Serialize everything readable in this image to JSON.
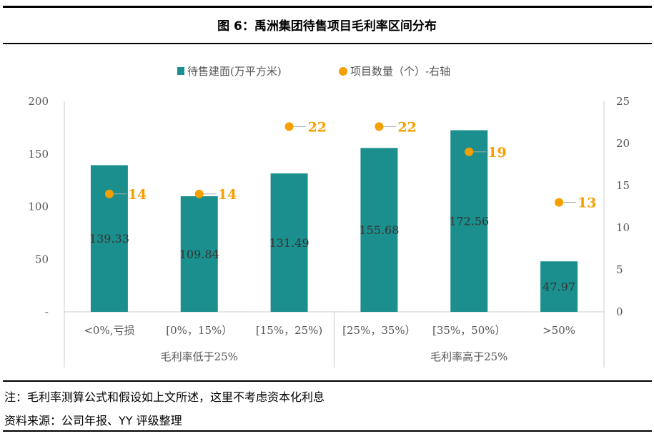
{
  "title": "图 6：禹洲集团待售项目毛利率区间分布",
  "note": "注：毛利率测算公式和假设如上文所述，这里不考虑资本化利息",
  "source": "资料来源：公司年报、YY 评级整理",
  "chart_data": {
    "type": "bar+scatter",
    "title": "图 6：禹洲集团待售项目毛利率区间分布",
    "categories": [
      "<0%,亏损",
      "[0%，15%）",
      "[15%，25%)",
      "[25%，35%）",
      "[35%，50%）",
      ">50%"
    ],
    "groups": [
      {
        "label": "毛利率低于25%",
        "count": 3
      },
      {
        "label": "毛利率高于25%",
        "count": 3
      }
    ],
    "series": [
      {
        "name": "待售建面(万平方米)",
        "type": "bar",
        "axis": "left",
        "color": "#1b8f8d",
        "values": [
          139.33,
          109.84,
          131.49,
          155.68,
          172.56,
          47.97
        ],
        "labels": [
          "139.33",
          "109.84",
          "131.49",
          "155.68",
          "172.56",
          "47.97"
        ]
      },
      {
        "name": "项目数量（个）-右轴",
        "type": "scatter",
        "axis": "right",
        "color": "#f5a000",
        "values": [
          14,
          14,
          22,
          22,
          19,
          13
        ],
        "labels": [
          "14",
          "14",
          "22",
          "22",
          "19",
          "13"
        ]
      }
    ],
    "y_left": {
      "range": [
        0,
        200
      ],
      "ticks": [
        "-",
        "50",
        "100",
        "150",
        "200"
      ]
    },
    "y_right": {
      "range": [
        0,
        25
      ],
      "ticks": [
        "0",
        "5",
        "10",
        "15",
        "20",
        "25"
      ]
    },
    "legend": "top-center",
    "grid": false
  }
}
